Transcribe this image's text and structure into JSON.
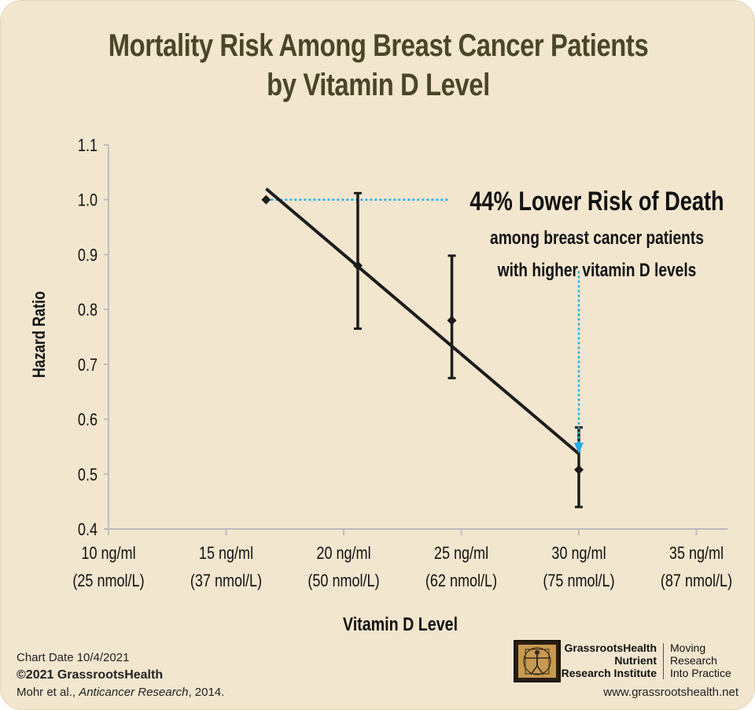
{
  "title": {
    "line1": "Mortality Risk Among Breast Cancer Patients",
    "line2": "by Vitamin D Level"
  },
  "chart_data": {
    "type": "scatter",
    "title": "Mortality Risk Among Breast Cancer Patients by Vitamin D Level",
    "xlabel": "Vitamin D Level",
    "ylabel": "Hazard Ratio",
    "ylim": [
      0.4,
      1.1
    ],
    "xlim": [
      10,
      35
    ],
    "yticks": [
      "1.1",
      "1.0",
      "0.9",
      "0.8",
      "0.7",
      "0.6",
      "0.5",
      "0.4"
    ],
    "xticks": [
      {
        "value": 10,
        "line1": "10 ng/ml",
        "line2": "(25 nmol/L)"
      },
      {
        "value": 15,
        "line1": "15 ng/ml",
        "line2": "(37 nmol/L)"
      },
      {
        "value": 20,
        "line1": "20 ng/ml",
        "line2": "(50 nmol/L)"
      },
      {
        "value": 25,
        "line1": "25 ng/ml",
        "line2": "(62 nmol/L)"
      },
      {
        "value": 30,
        "line1": "30 ng/ml",
        "line2": "(75 nmol/L)"
      },
      {
        "value": 35,
        "line1": "35 ng/ml",
        "line2": "(87 nmol/L)"
      }
    ],
    "points": [
      {
        "x": 16.7,
        "y": 1.0,
        "low": null,
        "high": null
      },
      {
        "x": 20.6,
        "y": 0.88,
        "low": 0.765,
        "high": 1.012
      },
      {
        "x": 24.6,
        "y": 0.78,
        "low": 0.675,
        "high": 0.898
      },
      {
        "x": 30.0,
        "y": 0.508,
        "low": 0.44,
        "high": 0.585
      }
    ],
    "trendline": {
      "x": [
        16.7,
        30.0
      ],
      "y": [
        1.02,
        0.537
      ]
    },
    "reference_line": {
      "y": 1.0,
      "x_from": 16.7,
      "x_to": 24.5
    },
    "arrow": {
      "x": 30.0,
      "y_from": 0.87,
      "y_to": 0.54
    },
    "annotation": {
      "headline": "44% Lower Risk of Death",
      "line2": "among breast cancer patients",
      "line3": "with higher vitamin D levels"
    },
    "colors": {
      "line": "#1c1c1c",
      "axis": "#bdbdbd",
      "dotted": "#22aee8",
      "title": "#4a4628"
    }
  },
  "footer": {
    "chart_date": "Chart Date 10/4/2021",
    "copyright": "©2021 GrassrootsHealth",
    "citation_authors": "Mohr et al., ",
    "citation_journal": "Anticancer Research",
    "citation_year": ", 2014.",
    "org_line1": "GrassrootsHealth",
    "org_line2": "Nutrient",
    "org_line3": "Research Institute",
    "tagline1": "Moving",
    "tagline2": "Research",
    "tagline3": "Into Practice",
    "url": "www.grassrootshealth.net",
    "logo_icon": "vitruvian-man-icon"
  }
}
